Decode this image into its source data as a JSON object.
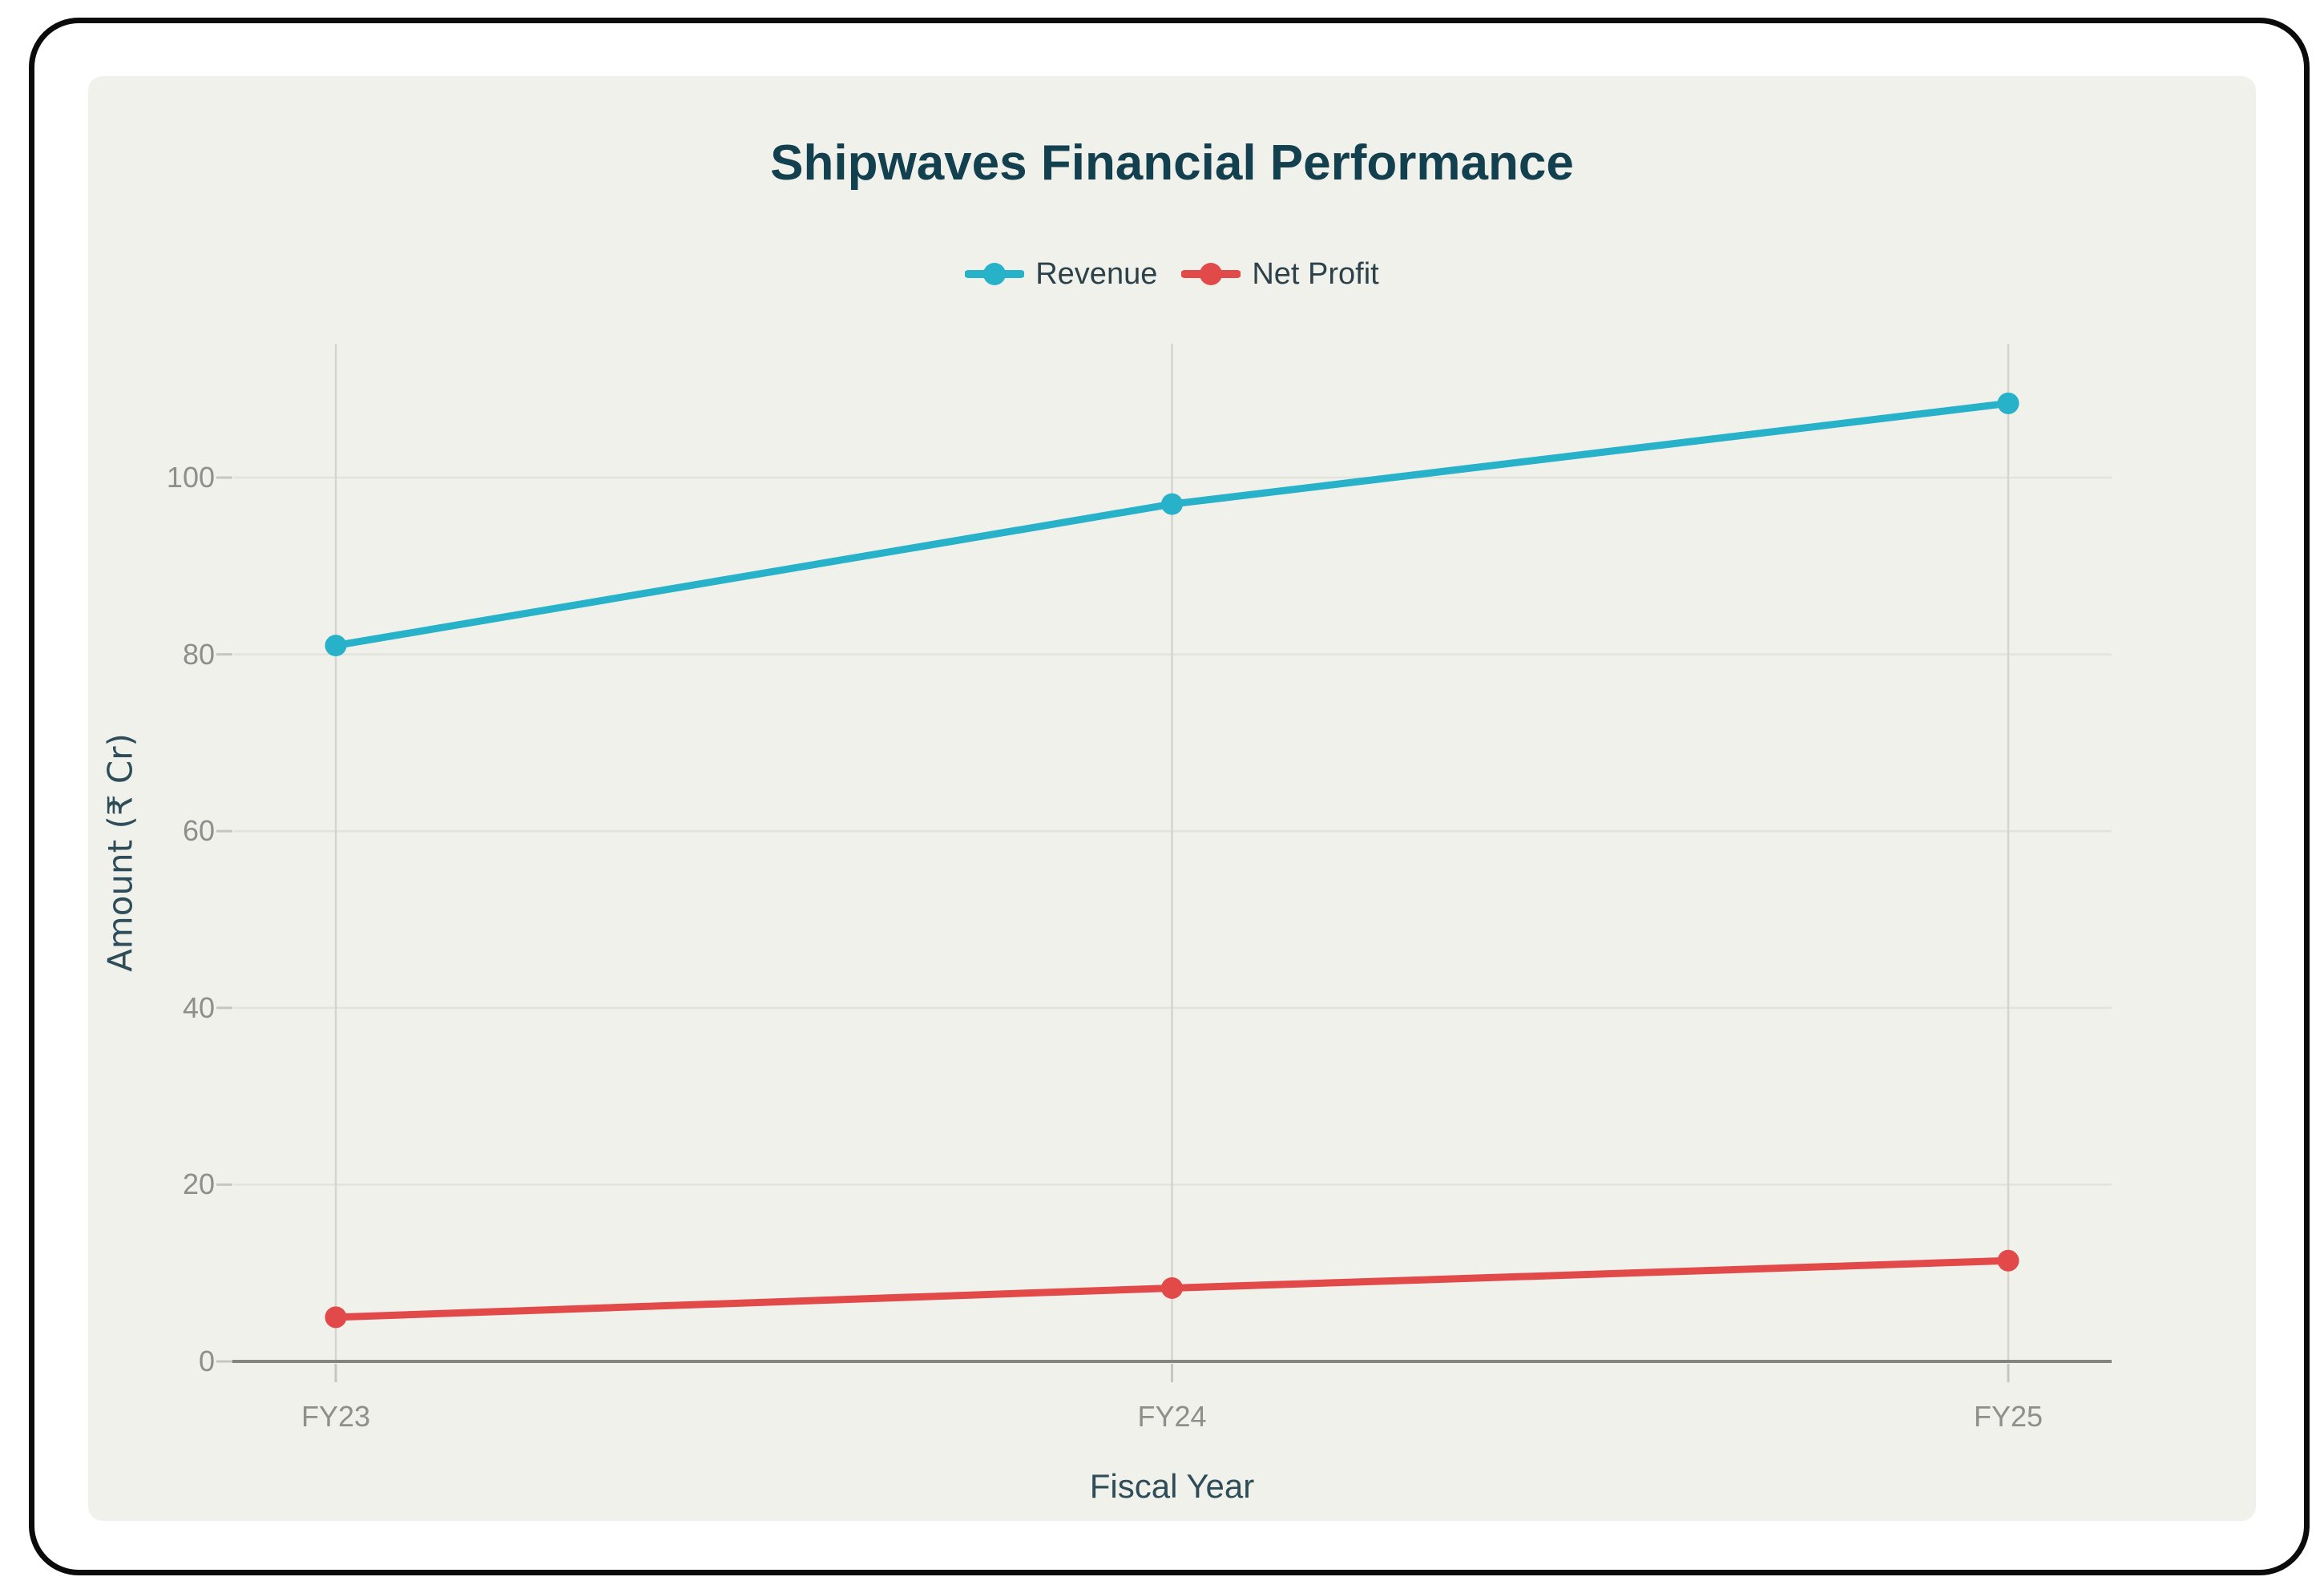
{
  "chart_data": {
    "type": "line",
    "title": "Shipwaves Financial Performance",
    "categories": [
      "FY23",
      "FY24",
      "FY25"
    ],
    "series": [
      {
        "name": "Revenue",
        "color": "#28b2c9",
        "values": [
          81,
          97,
          108.4
        ]
      },
      {
        "name": "Net Profit",
        "color": "#e24a4a",
        "values": [
          5,
          8.3,
          11.4
        ]
      }
    ],
    "xlabel": "Fiscal Year",
    "ylabel": "Amount (₹ Cr)",
    "y_ticks": [
      0,
      20,
      40,
      60,
      80,
      100
    ],
    "ylim": [
      0,
      115
    ],
    "grid": true,
    "legend_position": "top",
    "colors": {
      "title": "#12404f",
      "axis_title": "#2e4d58",
      "tick_label": "#8e8e8a",
      "legend_label": "#2d4149",
      "grid_h": "#e3e3dc",
      "grid_v": "#d5d5ce",
      "tick_mark": "#c6c6bf",
      "axis_line": "#85857f",
      "panel_bg": "#f1f1ec",
      "frame": "#0b0b0b"
    }
  }
}
